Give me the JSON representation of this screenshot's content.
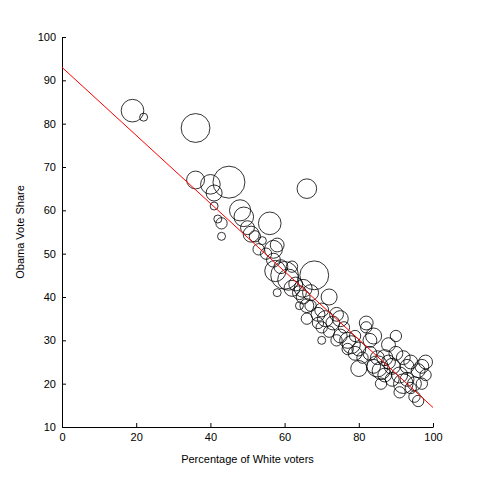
{
  "chart_data": {
    "type": "scatter",
    "x_label": "Percentage of White voters",
    "y_label": "Obama Vote Share",
    "xlim": [
      0,
      100
    ],
    "xticks": [
      0,
      20,
      40,
      60,
      80,
      100
    ],
    "ylim": [
      10,
      100
    ],
    "yticks": [
      10,
      20,
      30,
      40,
      50,
      60,
      70,
      80,
      90,
      100
    ],
    "grid": false,
    "series": [
      {
        "type": "scatter",
        "marker": "circle",
        "color": "#000000",
        "x": [
          19,
          22,
          36,
          36,
          40,
          41,
          41,
          42,
          43,
          43,
          45,
          48,
          49,
          50,
          51,
          52,
          53,
          54,
          55,
          56,
          57,
          57,
          58,
          57.5,
          59,
          60,
          61,
          62,
          63,
          64,
          65,
          66,
          65,
          66,
          67,
          67,
          68,
          69,
          69,
          70,
          70,
          71,
          72,
          72,
          73,
          74,
          74,
          75,
          75,
          76,
          77,
          77,
          78,
          79,
          79,
          80,
          80,
          81,
          82,
          82,
          83,
          83,
          84,
          84,
          85,
          85,
          86,
          86,
          87,
          87,
          88,
          88,
          89,
          89,
          90,
          90,
          91,
          91,
          92,
          92,
          93,
          93,
          94,
          94,
          95,
          95,
          96,
          96,
          97,
          97,
          98,
          98,
          62,
          58,
          64,
          66,
          70
        ],
        "values": [
          83,
          81.5,
          79,
          67,
          66,
          64,
          61,
          58,
          57,
          54,
          66.5,
          60,
          58.5,
          56,
          54.5,
          54,
          51,
          53,
          50,
          57,
          51,
          48.5,
          52,
          46,
          47,
          45,
          44,
          42,
          43,
          41,
          40,
          65,
          42,
          38,
          38,
          41,
          45,
          36,
          34,
          37,
          33,
          35,
          32,
          40,
          34,
          36,
          30,
          31,
          35,
          33,
          30,
          28,
          29,
          27,
          31,
          28,
          23.5,
          26,
          34,
          33,
          30,
          27,
          31,
          24,
          24,
          26,
          23,
          20,
          26,
          22,
          25,
          29,
          24,
          21,
          27,
          31,
          22,
          18,
          20,
          26,
          24,
          21,
          25,
          19,
          20,
          17,
          23,
          16,
          24,
          20,
          25,
          22,
          47,
          41,
          38,
          35,
          30
        ],
        "size": [
          8,
          1,
          13,
          5,
          6,
          4,
          1,
          1,
          2,
          1,
          16,
          7,
          6,
          3,
          4,
          2,
          2,
          1,
          2,
          8,
          5,
          3,
          3,
          7,
          3,
          12,
          7,
          4,
          3,
          3,
          3,
          6,
          5,
          3,
          2,
          4,
          13,
          3,
          2,
          3,
          2,
          4,
          2,
          4,
          3,
          3,
          2,
          3,
          4,
          2,
          4,
          2,
          5,
          3,
          2,
          3,
          4,
          2,
          3,
          2,
          3,
          3,
          4,
          3,
          7,
          3,
          5,
          2,
          4,
          3,
          3,
          3,
          4,
          3,
          3,
          2,
          4,
          2,
          6,
          3,
          3,
          3,
          3,
          2,
          3,
          2,
          3,
          2,
          3,
          2,
          3,
          2,
          2,
          1,
          1,
          2,
          1
        ]
      },
      {
        "type": "line",
        "line_style": "solid",
        "color": "#ff0000",
        "x": [
          0,
          100
        ],
        "values": [
          93,
          14.5
        ]
      }
    ]
  }
}
